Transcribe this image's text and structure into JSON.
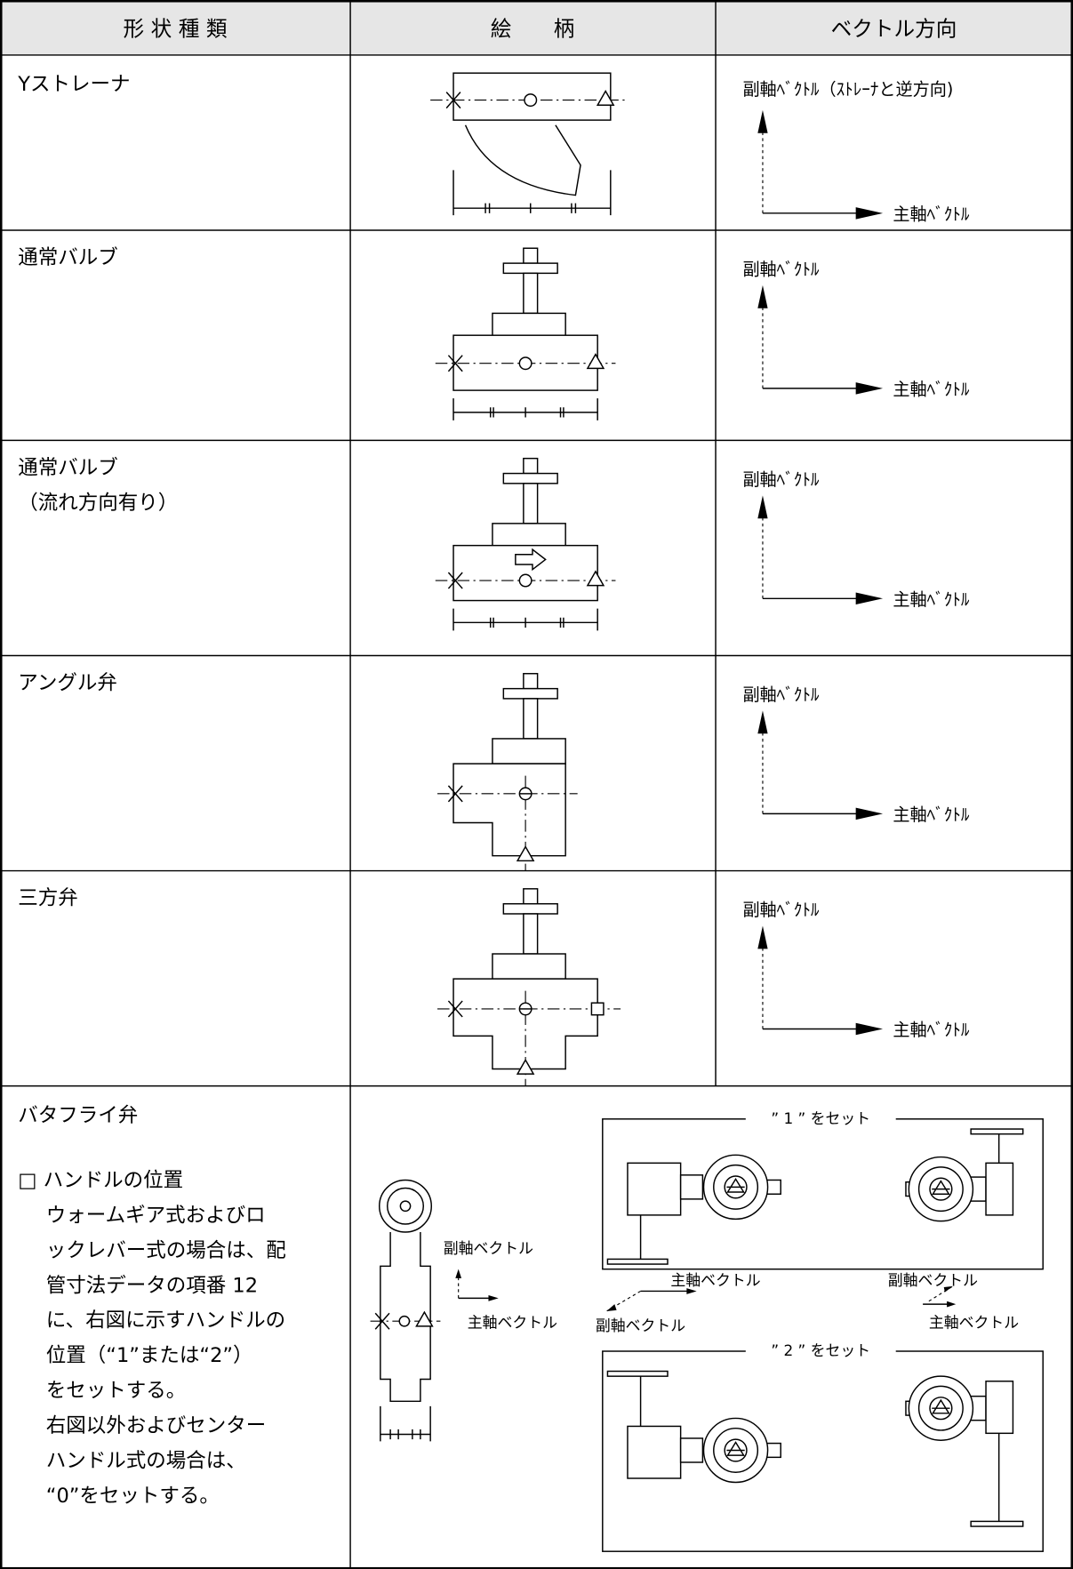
{
  "table": {
    "headers": [
      "形 状 種 類",
      "絵　　柄",
      "ベクトル方向"
    ],
    "rows": [
      {
        "name": "Yストレーナ",
        "sub_vector": "副軸ﾍﾞｸﾄﾙ（ｽﾄﾚｰﾅと逆方向)",
        "main_vector": "主軸ﾍﾞｸﾄﾙ"
      },
      {
        "name": "通常バルブ",
        "sub_vector": "副軸ﾍﾞｸﾄﾙ",
        "main_vector": "主軸ﾍﾞｸﾄﾙ"
      },
      {
        "name": "通常バルブ",
        "note": "（流れ方向有り）",
        "sub_vector": "副軸ﾍﾞｸﾄﾙ",
        "main_vector": "主軸ﾍﾞｸﾄﾙ"
      },
      {
        "name": "アングル弁",
        "sub_vector": "副軸ﾍﾞｸﾄﾙ",
        "main_vector": "主軸ﾍﾞｸﾄﾙ"
      },
      {
        "name": "三方弁",
        "sub_vector": "副軸ﾍﾞｸﾄﾙ",
        "main_vector": "主軸ﾍﾞｸﾄﾙ"
      },
      {
        "name": "バタフライ弁",
        "note_lines": [
          "□ ハンドルの位置",
          "ウォームギア式およびロ",
          "ックレバー式の場合は、配",
          "管寸法データの項番 12",
          "に、右図に示すハンドルの",
          "位置（“1”または“2”）",
          "をセットする。",
          "右図以外およびセンター",
          "ハンドル式の場合は、",
          "“0”をセットする。"
        ],
        "figure": {
          "sub_vector": "副軸ベクトル",
          "main_vector": "主軸ベクトル",
          "set_1": "” 1 ” をセット",
          "set_2": "” 2 ” をセット",
          "set_1_main": "主軸ベクトル",
          "set_1_sub": "副軸ベクトル",
          "set_2_sub": "副軸ベクトル",
          "set_2_main": "主軸ベクトル"
        }
      }
    ]
  }
}
